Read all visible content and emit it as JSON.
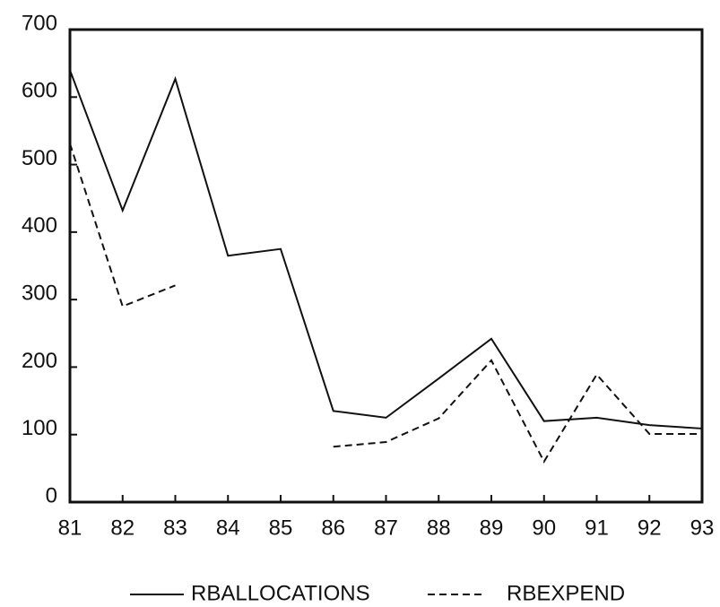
{
  "chart_data": {
    "type": "line",
    "categories": [
      "81",
      "82",
      "83",
      "84",
      "85",
      "86",
      "87",
      "88",
      "89",
      "90",
      "91",
      "92",
      "93"
    ],
    "series": [
      {
        "name": "RBALLOCATIONS",
        "color": "#111111",
        "style": "solid",
        "values": [
          640,
          432,
          627,
          365,
          375,
          135,
          125,
          183,
          242,
          120,
          125,
          114,
          109
        ]
      },
      {
        "name": "RBEXPEND",
        "color": "#111111",
        "style": "dashed",
        "values": [
          531,
          290,
          321,
          null,
          null,
          82,
          89,
          124,
          210,
          60,
          189,
          101,
          101
        ]
      }
    ],
    "ylim": [
      0,
      700
    ],
    "yticks": [
      0,
      100,
      200,
      300,
      400,
      500,
      600,
      700
    ],
    "legend": "bottom"
  }
}
